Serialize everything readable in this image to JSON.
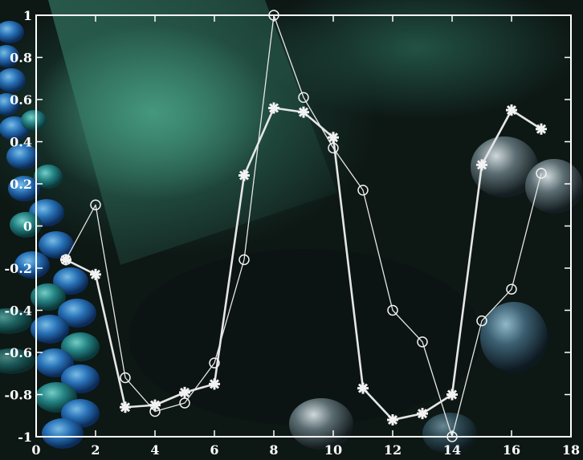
{
  "chart_data": {
    "type": "line",
    "title": "",
    "xlabel": "",
    "ylabel": "",
    "xlim": [
      0,
      18
    ],
    "ylim": [
      -1,
      1
    ],
    "grid": false,
    "xticks": [
      "0",
      "2",
      "4",
      "6",
      "8",
      "10",
      "12",
      "14",
      "16",
      "18"
    ],
    "yticks": [
      "1",
      "0.8",
      "0.6",
      "0.4",
      "0.2",
      "0",
      "-0.2",
      "-0.4",
      "-0.6",
      "-0.8",
      "-1"
    ],
    "series": [
      {
        "marker": "asterisk",
        "x": [
          1,
          2,
          3,
          4,
          5,
          6,
          7,
          8,
          9,
          10,
          11,
          12,
          13,
          14,
          15,
          16,
          17
        ],
        "y": [
          -0.16,
          -0.23,
          -0.86,
          -0.85,
          -0.79,
          -0.75,
          0.24,
          0.56,
          0.54,
          0.42,
          -0.77,
          -0.92,
          -0.89,
          -0.8,
          0.29,
          0.55,
          0.46
        ]
      },
      {
        "marker": "circle",
        "x": [
          1,
          2,
          3,
          4,
          5,
          6,
          7,
          8,
          9,
          10,
          11,
          12,
          13,
          14,
          15,
          16,
          17
        ],
        "y": [
          -0.16,
          0.1,
          -0.72,
          -0.88,
          -0.84,
          -0.65,
          -0.16,
          1.0,
          0.61,
          0.37,
          0.17,
          -0.4,
          -0.55,
          -1.0,
          -0.45,
          -0.3,
          0.25
        ]
      }
    ],
    "colors": {
      "axes": "#ffffff",
      "series_line": "#e6e6e6",
      "marker": "#f2f2f2"
    }
  }
}
